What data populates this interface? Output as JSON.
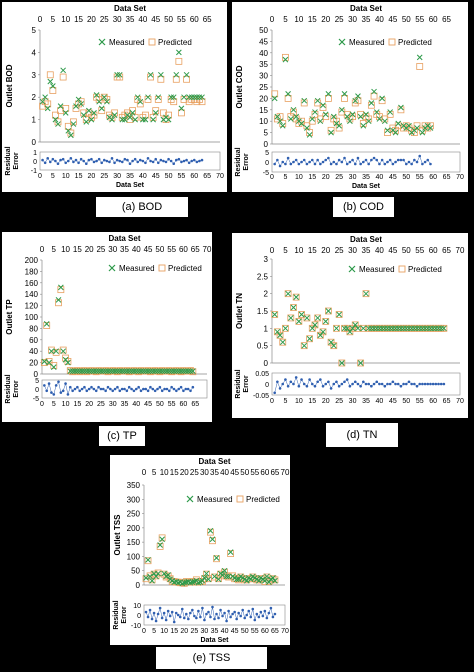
{
  "colors": {
    "measured": "#2e9a4a",
    "predicted": "#e8a060",
    "residual": "#2f5fb0"
  },
  "chart_data": [
    {
      "type": "scatter",
      "key": "bod",
      "caption": "(a) BOD",
      "title": "Data Set",
      "ylabel": "Outlet BOD",
      "xticks": [
        0,
        5,
        10,
        15,
        20,
        25,
        30,
        35,
        40,
        45,
        50,
        55,
        60,
        65
      ],
      "yticks": [
        0,
        1,
        2,
        3,
        4,
        5
      ],
      "legend": [
        "Measured",
        "Predicted"
      ],
      "residual": {
        "ylabel": "Residual Error",
        "xlabel": "Data Set",
        "xticks": [
          0,
          5,
          10,
          15,
          20,
          25,
          30,
          35,
          40,
          45,
          50,
          55,
          60,
          65,
          70
        ],
        "yticks": [
          -1,
          0,
          1
        ],
        "ylim": [
          -1,
          1
        ]
      },
      "measured": [
        1.8,
        2.0,
        1.5,
        2.7,
        2.5,
        1.0,
        0.8,
        1.6,
        3.2,
        1.3,
        0.5,
        0.3,
        0.8,
        1.6,
        1.9,
        1.7,
        1.2,
        0.9,
        1.4,
        1.0,
        1.3,
        2.1,
        1.8,
        1.5,
        2.0,
        1.8,
        1.1,
        1.0,
        1.2,
        3.0,
        3.0,
        1.0,
        1.0,
        1.2,
        1.1,
        1.3,
        1.0,
        2.0,
        1.8,
        1.0,
        1.0,
        2.0,
        3.0,
        1.0,
        1.3,
        2.0,
        3.0,
        1.0,
        1.1,
        1.0,
        2.0,
        2.0,
        3.0,
        4.0,
        1.5,
        2.0,
        3.0,
        2.0,
        2.0,
        2.0,
        2.0,
        2.0,
        2.0
      ],
      "predicted": [
        1.6,
        1.8,
        1.7,
        3.0,
        2.3,
        1.2,
        0.9,
        1.4,
        2.9,
        1.5,
        0.7,
        0.4,
        0.9,
        1.5,
        1.7,
        1.8,
        1.3,
        1.0,
        1.3,
        1.1,
        1.2,
        2.0,
        1.9,
        1.4,
        2.0,
        1.9,
        1.2,
        1.1,
        1.3,
        2.9,
        2.9,
        1.1,
        1.2,
        1.3,
        1.0,
        1.4,
        1.1,
        1.9,
        1.7,
        1.1,
        1.2,
        1.9,
        2.9,
        1.1,
        1.4,
        1.9,
        2.8,
        1.3,
        1.0,
        1.2,
        1.9,
        1.8,
        2.8,
        3.6,
        1.3,
        1.9,
        2.8,
        1.8,
        1.9,
        1.9,
        1.8,
        1.9,
        1.8
      ],
      "residuals": [
        0.1,
        -0.2,
        0.3,
        -0.1,
        0.2,
        0.0,
        -0.3,
        0.1,
        0.2,
        -0.2,
        0.0,
        0.3,
        -0.1,
        0.1,
        -0.2,
        0.2,
        0.0,
        -0.3,
        0.1,
        0.2,
        -0.1,
        0.0,
        0.2,
        -0.2,
        0.1,
        0.0,
        -0.1,
        0.3,
        -0.2,
        0.1,
        0.0,
        -0.1,
        0.2,
        0.1,
        -0.3,
        0.0,
        0.2,
        -0.1,
        0.1,
        0.0,
        -0.2,
        0.3,
        0.0,
        -0.1,
        0.2,
        -0.2,
        0.1,
        0.0,
        -0.1,
        0.2,
        0.0,
        -0.3,
        0.1,
        0.2,
        -0.1,
        0.0,
        0.1,
        -0.2,
        0.0,
        0.1,
        -0.1,
        0.0,
        0.1
      ]
    },
    {
      "type": "scatter",
      "key": "cod",
      "caption": "(b) COD",
      "title": "Data Set",
      "ylabel": "Outlet COD",
      "xticks": [
        0,
        5,
        10,
        15,
        20,
        25,
        30,
        35,
        40,
        45,
        50,
        55,
        60,
        65
      ],
      "yticks": [
        0,
        5,
        10,
        15,
        20,
        25,
        30,
        35,
        40,
        45,
        50
      ],
      "legend": [
        "Measured",
        "Predicted"
      ],
      "residual": {
        "ylabel": "Residual Error",
        "xlabel": "Data Set",
        "xticks": [
          0,
          5,
          10,
          15,
          20,
          25,
          30,
          35,
          40,
          45,
          50,
          55,
          60,
          65,
          70
        ],
        "yticks": [
          -5,
          0,
          5
        ],
        "ylim": [
          -5,
          5
        ]
      },
      "measured": [
        20,
        12,
        10,
        8,
        37,
        22,
        11,
        15,
        12,
        10,
        9,
        19,
        7,
        4,
        11,
        14,
        19,
        10,
        17,
        13,
        22,
        5,
        12,
        9,
        8,
        15,
        22,
        12,
        10,
        13,
        19,
        21,
        12,
        8,
        13,
        10,
        18,
        23,
        14,
        11,
        20,
        10,
        6,
        14,
        6,
        5,
        9,
        16,
        8,
        7,
        8,
        5,
        6,
        7,
        38,
        5,
        7,
        8,
        7
      ],
      "predicted": [
        22,
        11,
        12,
        9,
        38,
        20,
        12,
        14,
        11,
        9,
        10,
        18,
        8,
        5,
        10,
        13,
        18,
        11,
        16,
        12,
        20,
        6,
        11,
        10,
        7,
        14,
        20,
        13,
        11,
        12,
        18,
        19,
        13,
        9,
        12,
        11,
        17,
        21,
        13,
        12,
        19,
        11,
        5,
        13,
        7,
        6,
        8,
        15,
        7,
        8,
        7,
        6,
        5,
        8,
        34,
        6,
        8,
        7,
        8
      ],
      "residuals": [
        -1,
        1,
        -2,
        0,
        -1,
        2,
        -1,
        0,
        1,
        -1,
        0,
        1,
        -1,
        0,
        1,
        -1,
        1,
        -1,
        0,
        1,
        2,
        -1,
        0,
        -1,
        1,
        0,
        2,
        -1,
        0,
        1,
        -1,
        2,
        -1,
        0,
        1,
        -1,
        1,
        2,
        1,
        -1,
        1,
        -1,
        0,
        1,
        -1,
        0,
        1,
        1,
        1,
        -1,
        0,
        -1,
        1,
        0,
        3,
        -1,
        0,
        1,
        -1
      ]
    },
    {
      "type": "scatter",
      "key": "tp",
      "caption": "(c) TP",
      "title": "Data Set",
      "ylabel": "Outlet TP",
      "xticks": [
        0,
        5,
        10,
        15,
        20,
        25,
        30,
        35,
        40,
        45,
        50,
        55,
        60,
        65,
        70
      ],
      "yticks": [
        0,
        20,
        40,
        60,
        80,
        100,
        120,
        140,
        160,
        180,
        200
      ],
      "legend": [
        "Measured",
        "Predicted"
      ],
      "residual": {
        "ylabel": "Residual Error",
        "xlabel": "",
        "xticks": [
          0,
          5,
          10,
          15,
          20,
          25,
          30,
          35,
          40,
          45,
          50,
          55,
          60,
          65
        ],
        "yticks": [
          -5,
          0,
          5
        ],
        "ylim": [
          -5,
          5
        ]
      },
      "measured": [
        22,
        88,
        20,
        40,
        12,
        40,
        130,
        152,
        40,
        25,
        20,
        5,
        5,
        5,
        5,
        5,
        5,
        5,
        5,
        5,
        5,
        5,
        5,
        5,
        5,
        5,
        5,
        5,
        5,
        5,
        5,
        5,
        5,
        5,
        5,
        5,
        5,
        5,
        5,
        5,
        5,
        5,
        5,
        5,
        5,
        5,
        5,
        5,
        5,
        5,
        5,
        5,
        5,
        5,
        5,
        5,
        5,
        5,
        5,
        5,
        5,
        5,
        5,
        5
      ],
      "predicted": [
        20,
        85,
        22,
        42,
        15,
        38,
        125,
        148,
        42,
        28,
        22,
        6,
        4,
        5,
        6,
        4,
        5,
        6,
        4,
        5,
        6,
        5,
        4,
        6,
        5,
        5,
        6,
        4,
        5,
        6,
        5,
        4,
        6,
        5,
        5,
        6,
        4,
        5,
        6,
        5,
        4,
        6,
        5,
        5,
        6,
        4,
        5,
        6,
        5,
        4,
        6,
        5,
        5,
        6,
        4,
        5,
        6,
        5,
        4,
        6,
        5,
        5,
        6,
        4
      ],
      "residuals": [
        2,
        -1,
        3,
        -2,
        -3,
        2,
        4,
        -2,
        -1,
        3,
        -3,
        1,
        -1,
        0,
        1,
        -1,
        0,
        1,
        -1,
        0,
        1,
        0,
        -1,
        1,
        0,
        0,
        -1,
        1,
        0,
        -1,
        0,
        1,
        -1,
        0,
        0,
        -1,
        1,
        0,
        -1,
        0,
        1,
        -1,
        0,
        0,
        -1,
        1,
        0,
        -1,
        0,
        1,
        -1,
        0,
        0,
        -1,
        1,
        0,
        -1,
        0,
        1,
        -1,
        0,
        0,
        -1,
        1
      ]
    },
    {
      "type": "scatter",
      "key": "tn",
      "caption": "(d) TN",
      "title": "Data Set",
      "ylabel": "Outlet TN",
      "xticks": [
        0,
        5,
        10,
        15,
        20,
        25,
        30,
        35,
        40,
        45,
        50,
        55,
        60,
        65,
        70
      ],
      "yticks": [
        0.0,
        0.5,
        1.0,
        1.5,
        2.0,
        2.5,
        3.0
      ],
      "legend": [
        "Measured",
        "Predicted"
      ],
      "residual": {
        "ylabel": "Residual Error",
        "xlabel": "",
        "xticks": [
          0,
          5,
          10,
          15,
          20,
          25,
          30,
          35,
          40,
          45,
          50,
          55,
          60,
          65,
          70
        ],
        "yticks": [
          -0.05,
          0.0,
          0.05
        ],
        "ylim": [
          -0.05,
          0.05
        ]
      },
      "measured": [
        1.4,
        0.9,
        0.8,
        0.6,
        1.0,
        2.0,
        1.3,
        1.6,
        1.9,
        1.2,
        1.4,
        0.5,
        1.3,
        0.7,
        1.0,
        1.1,
        1.3,
        0.8,
        0.9,
        1.2,
        1.5,
        0.6,
        0.5,
        1.0,
        1.4,
        0.0,
        1.0,
        1.0,
        0.9,
        1.0,
        1.1,
        1.0,
        0.0,
        1.0,
        2.0,
        1.0,
        1.0,
        1.0,
        1.0,
        1.0,
        1.0,
        1.0,
        1.0,
        1.0,
        1.0,
        1.0,
        1.0,
        1.0,
        1.0,
        1.0,
        1.0,
        1.0,
        1.0,
        1.0,
        1.0,
        1.0,
        1.0,
        1.0,
        1.0,
        1.0,
        1.0,
        1.0,
        1.0,
        1.0
      ],
      "predicted": [
        1.4,
        0.9,
        0.8,
        0.6,
        1.0,
        2.0,
        1.3,
        1.6,
        1.9,
        1.2,
        1.4,
        0.5,
        1.3,
        0.7,
        1.0,
        1.1,
        1.3,
        0.8,
        0.9,
        1.2,
        1.5,
        0.6,
        0.5,
        1.0,
        1.4,
        0.0,
        1.0,
        1.0,
        0.9,
        1.0,
        1.1,
        1.0,
        0.0,
        1.0,
        2.0,
        1.0,
        1.0,
        1.0,
        1.0,
        1.0,
        1.0,
        1.0,
        1.0,
        1.0,
        1.0,
        1.0,
        1.0,
        1.0,
        1.0,
        1.0,
        1.0,
        1.0,
        1.0,
        1.0,
        1.0,
        1.0,
        1.0,
        1.0,
        1.0,
        1.0,
        1.0,
        1.0,
        1.0,
        1.0
      ],
      "residuals": [
        -0.04,
        0.01,
        -0.02,
        0.0,
        0.02,
        -0.01,
        0.01,
        0.0,
        0.03,
        -0.01,
        0.02,
        0.0,
        -0.01,
        0.02,
        0.0,
        -0.01,
        0.01,
        0.02,
        -0.01,
        0.0,
        0.01,
        -0.02,
        0.0,
        0.01,
        -0.01,
        0.0,
        0.01,
        0.02,
        -0.01,
        0.0,
        0.01,
        0.0,
        -0.01,
        0.01,
        0.0,
        0.0,
        -0.01,
        0.0,
        0.01,
        0.0,
        0.0,
        -0.01,
        0.0,
        0.0,
        0.01,
        0.0,
        0.0,
        -0.01,
        0.0,
        0.0,
        0.01,
        0.0,
        0.0,
        -0.01,
        0.0,
        0.0,
        0.0,
        0.0,
        0.0,
        0.0,
        0.0,
        0.0,
        0.0,
        0.0
      ]
    },
    {
      "type": "scatter",
      "key": "tss",
      "caption": "(e) TSS",
      "title": "Data Set",
      "ylabel": "Outlet TSS",
      "xticks": [
        0,
        5,
        10,
        15,
        20,
        25,
        30,
        35,
        40,
        45,
        50,
        55,
        60,
        65,
        70
      ],
      "yticks": [
        0,
        50,
        100,
        150,
        200,
        250,
        300,
        350
      ],
      "legend": [
        "Measured",
        "Predicted"
      ],
      "residual": {
        "ylabel": "Residual Error",
        "xlabel": "Data Set",
        "xticks": [
          0,
          5,
          10,
          15,
          20,
          25,
          30,
          35,
          40,
          45,
          50,
          55,
          60,
          65,
          70
        ],
        "yticks": [
          -10,
          0,
          10
        ],
        "ylim": [
          -10,
          10
        ]
      },
      "measured": [
        25,
        88,
        30,
        15,
        40,
        30,
        40,
        140,
        160,
        40,
        30,
        35,
        20,
        15,
        10,
        12,
        8,
        10,
        5,
        8,
        10,
        12,
        8,
        10,
        12,
        15,
        8,
        10,
        15,
        25,
        40,
        20,
        190,
        160,
        30,
        95,
        20,
        40,
        35,
        50,
        30,
        30,
        115,
        30,
        25,
        20,
        20,
        30,
        25,
        20,
        15,
        25,
        20,
        30,
        25,
        20,
        15,
        25,
        20,
        15,
        30,
        10,
        20,
        25,
        15
      ],
      "predicted": [
        22,
        85,
        32,
        18,
        38,
        32,
        42,
        135,
        165,
        38,
        28,
        32,
        22,
        12,
        12,
        10,
        10,
        8,
        8,
        6,
        12,
        10,
        10,
        12,
        10,
        18,
        10,
        12,
        12,
        22,
        38,
        22,
        185,
        155,
        28,
        92,
        22,
        38,
        32,
        45,
        32,
        28,
        110,
        32,
        22,
        22,
        18,
        28,
        22,
        18,
        18,
        22,
        22,
        28,
        22,
        18,
        18,
        22,
        22,
        12,
        28,
        12,
        18,
        22,
        18
      ],
      "residuals": [
        3,
        -2,
        5,
        -4,
        2,
        -6,
        1,
        7,
        -3,
        2,
        -5,
        4,
        -1,
        3,
        -7,
        2,
        0,
        -2,
        6,
        -3,
        1,
        -4,
        2,
        5,
        -1,
        -3,
        4,
        -2,
        7,
        -5,
        1,
        3,
        -2,
        8,
        -4,
        1,
        -3,
        5,
        -1,
        2,
        -6,
        4,
        -2,
        1,
        3,
        -4,
        2,
        -1,
        5,
        -3,
        0,
        4,
        -2,
        6,
        -5,
        1,
        -2,
        3,
        -1,
        4,
        -3,
        2,
        7,
        -2,
        1
      ]
    }
  ]
}
